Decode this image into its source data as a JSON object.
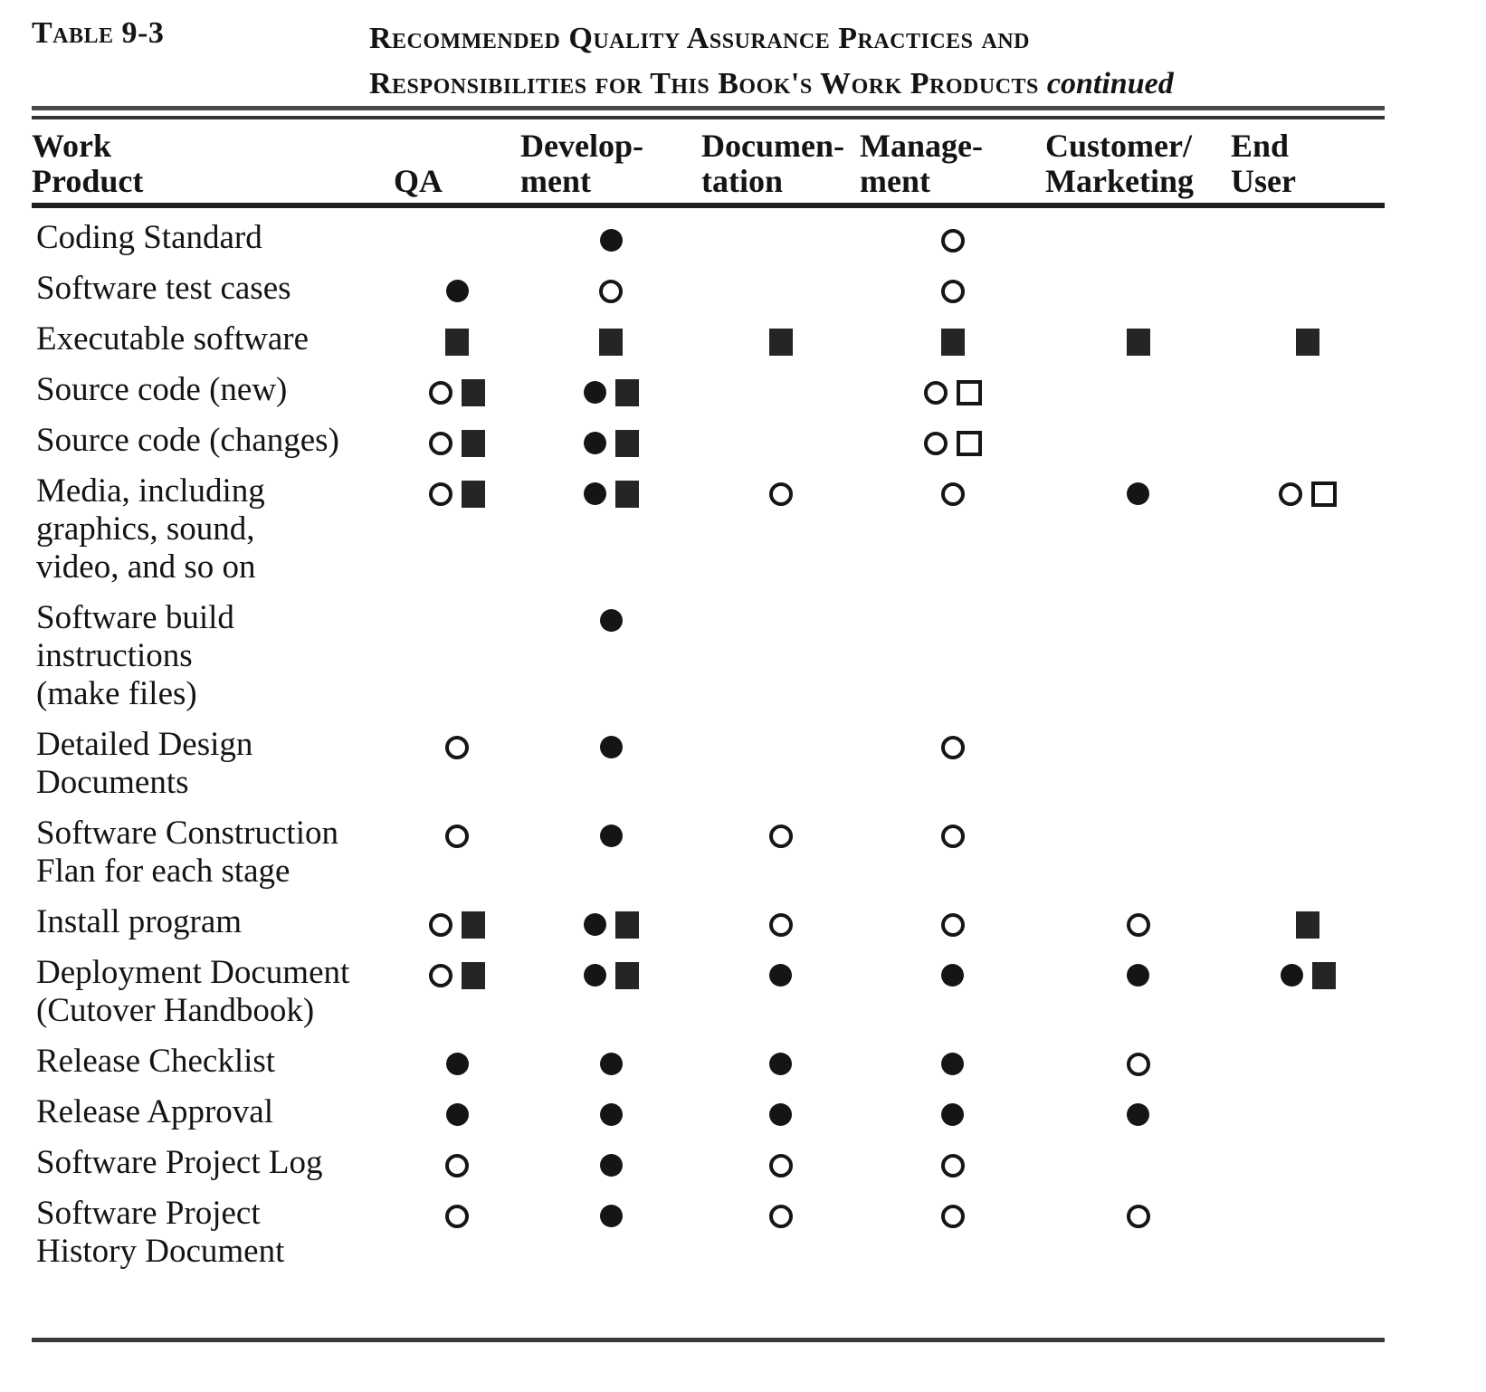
{
  "page": {
    "label": "Table 9-3",
    "title": {
      "line1": "Recommended Quality Assurance Practices and",
      "line2": "Responsibilities for This Book's Work Products",
      "continued": "continued"
    }
  },
  "table": {
    "columns": [
      {
        "key": "work-product",
        "lines": [
          "Work",
          "Product"
        ]
      },
      {
        "key": "qa",
        "lines": [
          "",
          "QA"
        ]
      },
      {
        "key": "development",
        "lines": [
          "Develop-",
          "ment"
        ]
      },
      {
        "key": "documentation",
        "lines": [
          "Documen-",
          "tation"
        ]
      },
      {
        "key": "management",
        "lines": [
          "Manage-",
          "ment"
        ]
      },
      {
        "key": "customer-marketing",
        "lines": [
          "Customer/",
          "Marketing"
        ]
      },
      {
        "key": "end-user",
        "lines": [
          "End",
          "User"
        ]
      }
    ],
    "symbol_tokens": [
      "filled-circle",
      "open-circle",
      "filled-square",
      "open-square"
    ],
    "rows": [
      {
        "product_lines": [
          "Coding Standard"
        ],
        "cells": [
          [],
          [
            "filled-circle"
          ],
          [],
          [
            "open-circle"
          ],
          [],
          []
        ]
      },
      {
        "product_lines": [
          "Software test cases"
        ],
        "cells": [
          [
            "filled-circle"
          ],
          [
            "open-circle"
          ],
          [],
          [
            "open-circle"
          ],
          [],
          []
        ]
      },
      {
        "product_lines": [
          "Executable software"
        ],
        "cells": [
          [
            "filled-square"
          ],
          [
            "filled-square"
          ],
          [
            "filled-square"
          ],
          [
            "filled-square"
          ],
          [
            "filled-square"
          ],
          [
            "filled-square"
          ]
        ]
      },
      {
        "product_lines": [
          "Source code (new)"
        ],
        "cells": [
          [
            "open-circle",
            "filled-square"
          ],
          [
            "filled-circle",
            "filled-square"
          ],
          [],
          [
            "open-circle",
            "open-square"
          ],
          [],
          []
        ]
      },
      {
        "product_lines": [
          "Source code (changes)"
        ],
        "cells": [
          [
            "open-circle",
            "filled-square"
          ],
          [
            "filled-circle",
            "filled-square"
          ],
          [],
          [
            "open-circle",
            "open-square"
          ],
          [],
          []
        ]
      },
      {
        "product_lines": [
          "Media, including",
          "graphics, sound,",
          "video, and so on"
        ],
        "cells": [
          [
            "open-circle",
            "filled-square"
          ],
          [
            "filled-circle",
            "filled-square"
          ],
          [
            "open-circle"
          ],
          [
            "open-circle"
          ],
          [
            "filled-circle"
          ],
          [
            "open-circle",
            "open-square"
          ]
        ]
      },
      {
        "product_lines": [
          "Software  build",
          "instructions",
          "(make files)"
        ],
        "cells": [
          [],
          [
            "filled-circle"
          ],
          [],
          [],
          [],
          []
        ]
      },
      {
        "product_lines": [
          "Detailed Design",
          "Documents"
        ],
        "cells": [
          [
            "open-circle"
          ],
          [
            "filled-circle"
          ],
          [],
          [
            "open-circle"
          ],
          [],
          []
        ]
      },
      {
        "product_lines": [
          "Software  Construction",
          "Flan for each stage"
        ],
        "cells": [
          [
            "open-circle"
          ],
          [
            "filled-circle"
          ],
          [
            "open-circle"
          ],
          [
            "open-circle"
          ],
          [],
          []
        ]
      },
      {
        "product_lines": [
          "Install program"
        ],
        "cells": [
          [
            "open-circle",
            "filled-square"
          ],
          [
            "filled-circle",
            "filled-square"
          ],
          [
            "open-circle"
          ],
          [
            "open-circle"
          ],
          [
            "open-circle"
          ],
          [
            "filled-square"
          ]
        ]
      },
      {
        "product_lines": [
          "Deployment Document",
          "(Cutover  Handbook)"
        ],
        "cells": [
          [
            "open-circle",
            "filled-square"
          ],
          [
            "filled-circle",
            "filled-square"
          ],
          [
            "filled-circle"
          ],
          [
            "filled-circle"
          ],
          [
            "filled-circle"
          ],
          [
            "filled-circle",
            "filled-square"
          ]
        ]
      },
      {
        "product_lines": [
          "Release  Checklist"
        ],
        "cells": [
          [
            "filled-circle"
          ],
          [
            "filled-circle"
          ],
          [
            "filled-circle"
          ],
          [
            "filled-circle"
          ],
          [
            "open-circle"
          ],
          []
        ]
      },
      {
        "product_lines": [
          "Release  Approval"
        ],
        "cells": [
          [
            "filled-circle"
          ],
          [
            "filled-circle"
          ],
          [
            "filled-circle"
          ],
          [
            "filled-circle"
          ],
          [
            "filled-circle"
          ],
          []
        ]
      },
      {
        "product_lines": [
          "Software Project Log"
        ],
        "cells": [
          [
            "open-circle"
          ],
          [
            "filled-circle"
          ],
          [
            "open-circle"
          ],
          [
            "open-circle"
          ],
          [],
          []
        ]
      },
      {
        "product_lines": [
          "Software Project",
          "History Document"
        ],
        "cells": [
          [
            "open-circle"
          ],
          [
            "filled-circle"
          ],
          [
            "open-circle"
          ],
          [
            "open-circle"
          ],
          [
            "open-circle"
          ],
          []
        ]
      }
    ]
  },
  "colors": {
    "ink": "#141414",
    "square_ink": "#252525",
    "rule": "#3a3a3a",
    "background": "#ffffff"
  }
}
